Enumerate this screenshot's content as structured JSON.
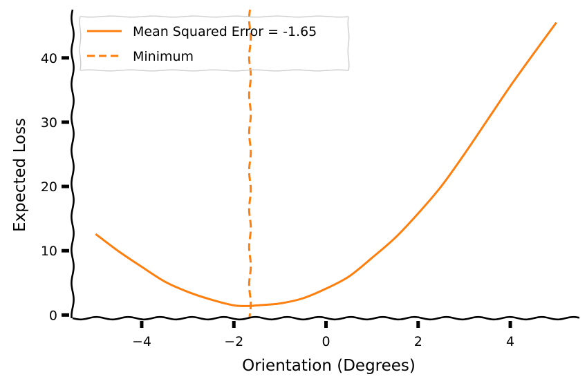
{
  "chart_data": {
    "type": "line",
    "title": "",
    "xlabel": "Orientation (Degrees)",
    "ylabel": "Expected Loss",
    "xlim": [
      -5.5,
      5.5
    ],
    "ylim": [
      -0.5,
      47.5
    ],
    "x_ticks": [
      -4,
      -2,
      0,
      2,
      4
    ],
    "x_tick_labels": [
      "−4",
      "−2",
      "0",
      "2",
      "4"
    ],
    "y_ticks": [
      0,
      10,
      20,
      30,
      40
    ],
    "y_tick_labels": [
      "0",
      "10",
      "20",
      "30",
      "40"
    ],
    "grid": false,
    "legend_position": "top-left",
    "series": [
      {
        "name": "Mean Squared Error = -1.65",
        "style": "solid",
        "color": "#ff7f0e",
        "x": [
          -5.0,
          -4.5,
          -4.0,
          -3.5,
          -3.0,
          -2.5,
          -2.0,
          -1.65,
          -1.5,
          -1.0,
          -0.5,
          0.0,
          0.5,
          1.0,
          1.5,
          2.0,
          2.5,
          3.0,
          3.5,
          4.0,
          4.5,
          5.0
        ],
        "y": [
          12.6,
          9.9,
          7.5,
          5.2,
          3.6,
          2.4,
          1.5,
          1.4,
          1.5,
          1.8,
          2.6,
          4.1,
          6.0,
          8.9,
          12.0,
          15.8,
          20.0,
          25.0,
          30.3,
          35.6,
          40.6,
          45.5
        ]
      },
      {
        "name": "Minimum",
        "style": "dashed",
        "color": "#ff7f0e",
        "x": [
          -1.65,
          -1.65
        ],
        "y": [
          -0.5,
          47.5
        ]
      }
    ]
  }
}
